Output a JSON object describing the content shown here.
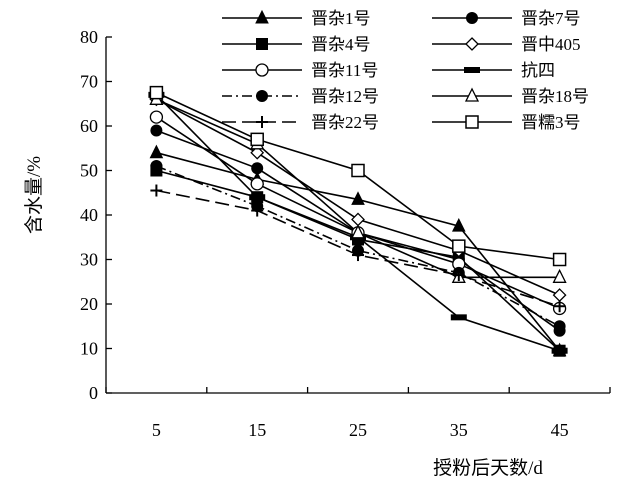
{
  "chart_data": {
    "type": "line",
    "title": "",
    "xlabel": "授粉后天数/d",
    "ylabel": "含水量/%",
    "x": [
      5,
      15,
      25,
      35,
      45
    ],
    "xlim": [
      0,
      50
    ],
    "ylim": [
      0,
      80
    ],
    "y_ticks": [
      0,
      10,
      20,
      30,
      40,
      50,
      60,
      70,
      80
    ],
    "grid": false,
    "legend_position": "top",
    "series": [
      {
        "name": "晋杂1号",
        "marker": "triangle-filled",
        "dash": "solid",
        "values": [
          54,
          48,
          43.5,
          37.5,
          9.5
        ]
      },
      {
        "name": "晋杂7号",
        "marker": "circle-filled",
        "dash": "solid",
        "values": [
          59,
          50.5,
          36,
          30,
          14
        ]
      },
      {
        "name": "晋杂4号",
        "marker": "square-filled",
        "dash": "solid",
        "values": [
          50,
          44,
          34.5,
          30.5,
          9.5
        ]
      },
      {
        "name": "晋中405",
        "marker": "diamond-open",
        "dash": "solid",
        "values": [
          66,
          54,
          39,
          32,
          22
        ]
      },
      {
        "name": "晋杂11号",
        "marker": "circle-open",
        "dash": "solid",
        "values": [
          62,
          47,
          36,
          29,
          19
        ]
      },
      {
        "name": "抗四",
        "marker": "dash-filled",
        "dash": "solid",
        "values": [
          67,
          44,
          35,
          17,
          9.5
        ]
      },
      {
        "name": "晋杂12号",
        "marker": "circle-filled",
        "dash": "dashdot",
        "values": [
          51,
          42,
          32,
          27,
          15
        ]
      },
      {
        "name": "晋杂18号",
        "marker": "triangle-open",
        "dash": "solid",
        "values": [
          66,
          56,
          36,
          26,
          26
        ]
      },
      {
        "name": "晋杂22号",
        "marker": "plus",
        "dash": "longdash",
        "values": [
          45.5,
          41,
          31,
          26.5,
          19.5
        ]
      },
      {
        "name": "晋糯3号",
        "marker": "square-open",
        "dash": "solid",
        "values": [
          67.5,
          57,
          50,
          33,
          30
        ]
      }
    ]
  }
}
